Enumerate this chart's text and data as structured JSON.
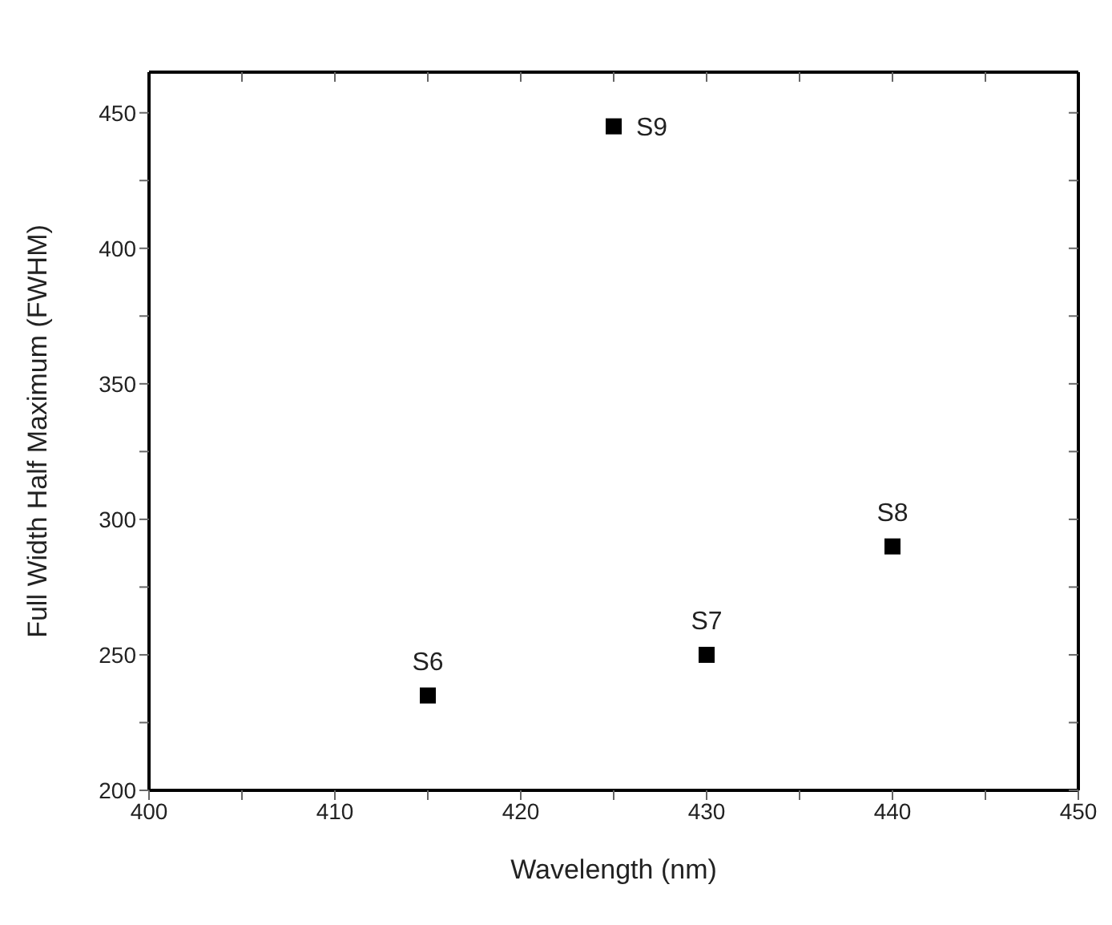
{
  "chart_data": {
    "type": "scatter",
    "xlabel": "Wavelength (nm)",
    "ylabel": "Full Width Half Maximum (FWHM)",
    "x": [
      415,
      430,
      440,
      425
    ],
    "values": [
      235,
      250,
      290,
      445
    ],
    "color": "#000000",
    "marker": "square",
    "xlim": [
      400,
      450
    ],
    "xticks": [
      400,
      {
        "value": 405,
        "label": null
      },
      410,
      {
        "value": 415,
        "label": null
      },
      420,
      {
        "value": 425,
        "label": null
      },
      430,
      {
        "value": 435,
        "label": null
      },
      440,
      {
        "value": 445,
        "label": null
      },
      450
    ],
    "ylim": [
      200,
      465
    ],
    "yticks": [
      200,
      {
        "value": 225,
        "label": null
      },
      250,
      {
        "value": 275,
        "label": null
      },
      300,
      {
        "value": 325,
        "label": null
      },
      350,
      {
        "value": 375,
        "label": null
      },
      400,
      {
        "value": 425,
        "label": null
      },
      450
    ],
    "annotations": [
      {
        "text": "S6",
        "x": 415,
        "y": 235
      },
      {
        "text": "S7",
        "x": 430,
        "y": 250
      },
      {
        "text": "S8",
        "x": 440,
        "y": 290
      },
      {
        "text": "S9",
        "x": 425,
        "y": 445
      }
    ],
    "line_style": "none"
  }
}
